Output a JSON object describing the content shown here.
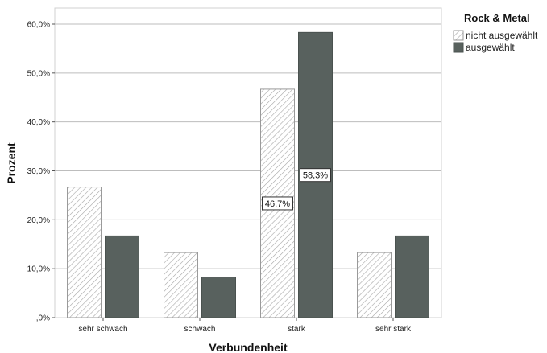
{
  "chart_data": {
    "type": "bar",
    "xlabel": "Verbundenheit",
    "ylabel": "Prozent",
    "ylim": [
      0,
      60
    ],
    "yticks": [
      0,
      10,
      20,
      30,
      40,
      50,
      60
    ],
    "ytick_labels": [
      ",0%",
      "10,0%",
      "20,0%",
      "30,0%",
      "40,0%",
      "50,0%",
      "60,0%"
    ],
    "grid": true,
    "categories": [
      "sehr schwach",
      "schwach",
      "stark",
      "sehr stark"
    ],
    "legend": {
      "title": "Rock & Metal",
      "placement": "top-right"
    },
    "series": [
      {
        "name": "nicht ausgewählt",
        "values": [
          26.7,
          13.3,
          46.7,
          13.3
        ],
        "fill": "hatched",
        "color": "#9a9a9a"
      },
      {
        "name": "ausgewählt",
        "values": [
          16.7,
          8.3,
          58.3,
          16.7
        ],
        "fill": "solid",
        "color": "#58615e"
      }
    ],
    "annotations": [
      {
        "series": 0,
        "category": 2,
        "text": "46,7%"
      },
      {
        "series": 1,
        "category": 2,
        "text": "58,3%"
      }
    ]
  }
}
